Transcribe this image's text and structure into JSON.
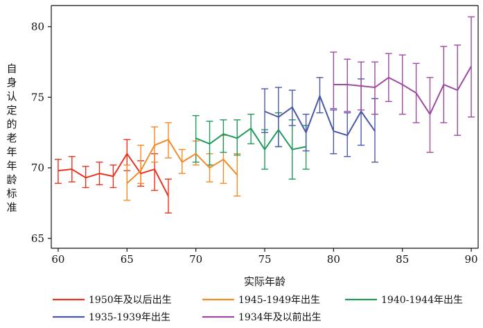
{
  "chart_data": {
    "type": "line",
    "title": "",
    "xlabel": "实际年龄",
    "ylabel": "自身认定的老年年龄标准",
    "xlim": [
      59.5,
      90.5
    ],
    "ylim": [
      64.3,
      81.5
    ],
    "xticks": [
      60,
      65,
      70,
      75,
      80,
      85,
      90
    ],
    "yticks": [
      65,
      70,
      75,
      80
    ],
    "xtick_labels": [
      "60",
      "65",
      "70",
      "75",
      "80",
      "85",
      "90"
    ],
    "ytick_labels": [
      "65",
      "70",
      "75",
      "80"
    ],
    "grid": false,
    "legend_position": "bottom",
    "series": [
      {
        "name": "1950年及以后出生",
        "color": "#e8321e",
        "x": [
          60,
          61,
          62,
          63,
          64,
          65,
          66,
          67,
          68
        ],
        "y": [
          69.8,
          69.9,
          69.3,
          69.6,
          69.4,
          71.0,
          69.6,
          69.9,
          68.0
        ],
        "err_low": [
          68.9,
          69.0,
          68.6,
          68.8,
          68.6,
          69.8,
          68.7,
          68.4,
          66.8
        ],
        "err_high": [
          70.6,
          70.8,
          70.1,
          70.4,
          70.2,
          72.0,
          70.5,
          71.0,
          69.2
        ]
      },
      {
        "name": "1945-1949年出生",
        "color": "#f28a28",
        "x": [
          65,
          66,
          67,
          68,
          69,
          70,
          71,
          72,
          73
        ],
        "y": [
          68.9,
          69.8,
          71.6,
          72.0,
          70.4,
          71.0,
          70.0,
          70.6,
          69.5
        ],
        "err_low": [
          67.7,
          68.9,
          70.4,
          70.7,
          69.6,
          70.2,
          69.0,
          68.9,
          68.0
        ],
        "err_high": [
          70.2,
          71.6,
          72.9,
          73.2,
          71.3,
          71.9,
          71.0,
          72.3,
          71.0
        ]
      },
      {
        "name": "1940-1944年出生",
        "color": "#1e9a5c",
        "x": [
          70,
          71,
          72,
          73,
          74,
          75,
          76,
          77,
          78
        ],
        "y": [
          72.1,
          71.7,
          72.4,
          72.1,
          72.8,
          71.3,
          72.7,
          71.3,
          71.5
        ],
        "err_low": [
          70.4,
          70.2,
          71.1,
          70.9,
          71.7,
          69.9,
          71.5,
          69.2,
          69.9
        ],
        "err_high": [
          73.7,
          73.3,
          73.4,
          73.4,
          73.8,
          72.7,
          73.9,
          73.4,
          73.0
        ]
      },
      {
        "name": "1935-1939年出生",
        "color": "#4a57a6",
        "x": [
          75,
          76,
          77,
          78,
          79,
          80,
          81,
          82,
          83
        ],
        "y": [
          74.0,
          73.6,
          74.3,
          72.5,
          75.1,
          72.6,
          72.3,
          74.0,
          72.6
        ],
        "err_low": [
          72.5,
          71.5,
          73.0,
          71.2,
          73.9,
          71.0,
          70.8,
          71.6,
          70.4
        ],
        "err_high": [
          75.6,
          75.7,
          75.5,
          73.8,
          76.4,
          74.1,
          73.9,
          76.3,
          74.9
        ]
      },
      {
        "name": "1934年及以前出生",
        "color": "#9c4aa0",
        "x": [
          80,
          81,
          82,
          83,
          84,
          85,
          86,
          87,
          88,
          89,
          90
        ],
        "y": [
          75.9,
          75.9,
          75.8,
          75.7,
          76.4,
          75.9,
          75.3,
          73.8,
          75.9,
          75.5,
          77.2
        ],
        "err_low": [
          74.2,
          74.0,
          74.1,
          73.8,
          74.7,
          73.8,
          73.2,
          71.1,
          73.2,
          72.3,
          73.6
        ],
        "err_high": [
          78.2,
          77.7,
          77.5,
          77.5,
          78.1,
          78.0,
          77.4,
          76.4,
          78.6,
          78.7,
          80.7
        ]
      }
    ],
    "errorbar_color": "#d671b3"
  }
}
